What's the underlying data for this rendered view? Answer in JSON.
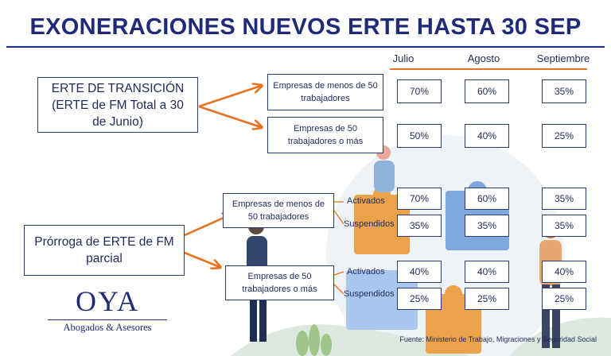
{
  "title": "EXONERACIONES NUEVOS ERTE HASTA 30 SEP",
  "months": [
    "Julio",
    "Agosto",
    "Septiembre"
  ],
  "colors": {
    "navy": "#1f2a78",
    "orange": "#e8721f"
  },
  "erte_transicion": {
    "label": "ERTE DE TRANSICIÓN (ERTE de FM Total a 30 de Junio)",
    "groups": [
      {
        "label": "Empresas de menos de 50 trabajadores",
        "values": [
          "70%",
          "60%",
          "35%"
        ]
      },
      {
        "label": "Empresas de 50 trabajadores o más",
        "values": [
          "50%",
          "40%",
          "25%"
        ]
      }
    ]
  },
  "prorroga": {
    "label": "Prórroga de ERTE de FM parcial",
    "groups": [
      {
        "label": "Empresas de menos de 50 trabajadores",
        "rows": [
          {
            "status": "Activados",
            "values": [
              "70%",
              "60%",
              "35%"
            ]
          },
          {
            "status": "Suspendidos",
            "values": [
              "35%",
              "35%",
              "35%"
            ]
          }
        ]
      },
      {
        "label": "Empresas de 50 trabajadores o más",
        "rows": [
          {
            "status": "Activados",
            "values": [
              "40%",
              "40%",
              "40%"
            ]
          },
          {
            "status": "Suspendidos",
            "values": [
              "25%",
              "25%",
              "25%"
            ]
          }
        ]
      }
    ]
  },
  "logo": {
    "name": "OYA",
    "tagline": "Abogados & Asesores"
  },
  "source": "Fuente: Ministerio de Trabajo, Migraciones y Seguridad Social"
}
